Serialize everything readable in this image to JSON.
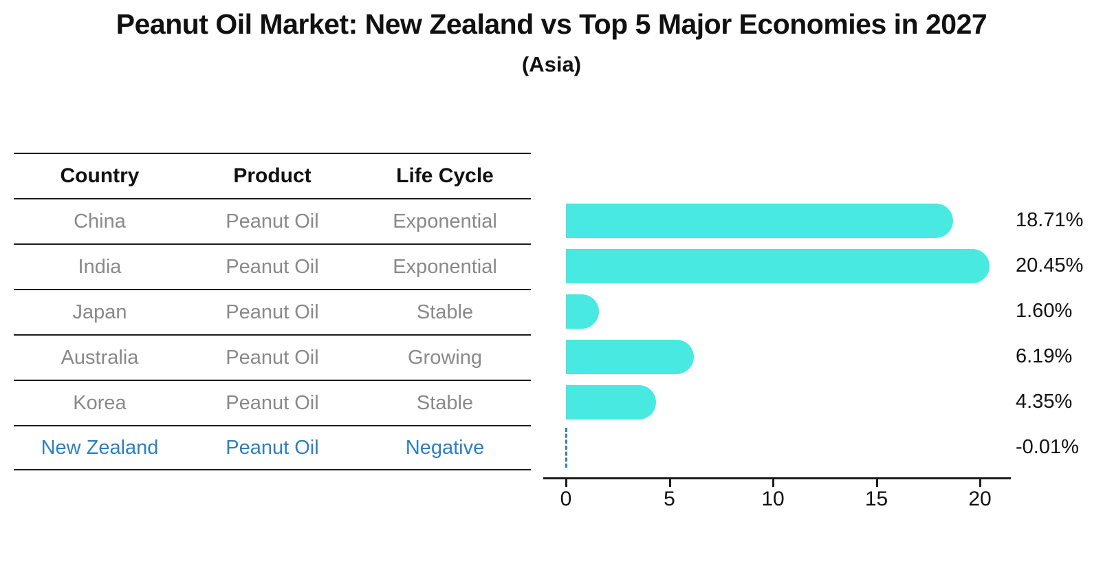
{
  "title": "Peanut Oil Market: New Zealand vs Top 5 Major Economies in 2027",
  "subtitle": "(Asia)",
  "table": {
    "headers": [
      "Country",
      "Product",
      "Life Cycle"
    ],
    "rows": [
      {
        "country": "China",
        "product": "Peanut Oil",
        "life_cycle": "Exponential",
        "highlighted": false
      },
      {
        "country": "India",
        "product": "Peanut Oil",
        "life_cycle": "Exponential",
        "highlighted": false
      },
      {
        "country": "Japan",
        "product": "Peanut Oil",
        "life_cycle": "Stable",
        "highlighted": false
      },
      {
        "country": "Australia",
        "product": "Peanut Oil",
        "life_cycle": "Growing",
        "highlighted": false
      },
      {
        "country": "Korea",
        "product": "Peanut Oil",
        "life_cycle": "Stable",
        "highlighted": false
      },
      {
        "country": "New Zealand",
        "product": "Peanut Oil",
        "life_cycle": "Negative",
        "highlighted": true
      }
    ]
  },
  "chart_data": {
    "type": "bar",
    "orientation": "horizontal",
    "title": "Peanut Oil Market: New Zealand vs Top 5 Major Economies in 2027",
    "subtitle": "(Asia)",
    "categories": [
      "China",
      "India",
      "Japan",
      "Australia",
      "Korea",
      "New Zealand"
    ],
    "values": [
      18.71,
      20.45,
      1.6,
      6.19,
      4.35,
      -0.01
    ],
    "value_labels": [
      "18.71%",
      "20.45%",
      "1.60%",
      "6.19%",
      "4.35%",
      "-0.01%"
    ],
    "x_ticks": [
      0,
      5,
      10,
      15,
      20
    ],
    "xlim": [
      -1.1,
      21.5
    ],
    "grid": false,
    "legend": false,
    "bar_color": "#48e9e1",
    "highlight_color": "#2e7ec0",
    "axis_color": "#1c1c1c",
    "label_color": "#111111",
    "muted_text_color": "#898989"
  }
}
